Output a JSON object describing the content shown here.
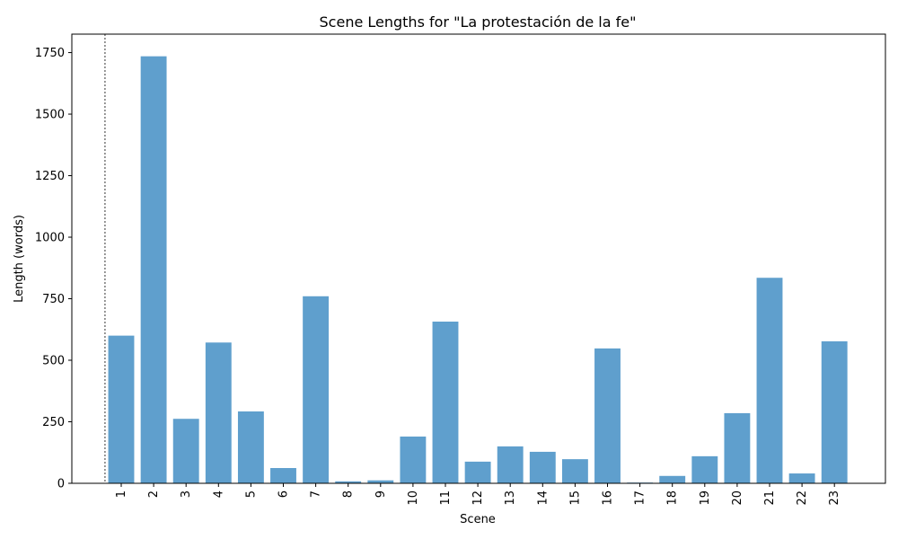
{
  "chart_data": {
    "type": "bar",
    "title": "Scene Lengths for \"La protestación de la fe\"",
    "xlabel": "Scene",
    "ylabel": "Length (words)",
    "categories": [
      "1",
      "2",
      "3",
      "4",
      "5",
      "6",
      "7",
      "8",
      "9",
      "10",
      "11",
      "12",
      "13",
      "14",
      "15",
      "16",
      "17",
      "18",
      "19",
      "20",
      "21",
      "22",
      "23"
    ],
    "values": [
      600,
      1735,
      262,
      572,
      292,
      62,
      760,
      8,
      12,
      190,
      657,
      88,
      150,
      128,
      98,
      548,
      3,
      30,
      110,
      285,
      835,
      40,
      577
    ],
    "ylim": [
      0,
      1825
    ],
    "yticks": [
      0,
      250,
      500,
      750,
      1000,
      1250,
      1500,
      1750
    ],
    "grid": false,
    "bar_color": "#5f9fcd",
    "vline_color": "#000000"
  }
}
